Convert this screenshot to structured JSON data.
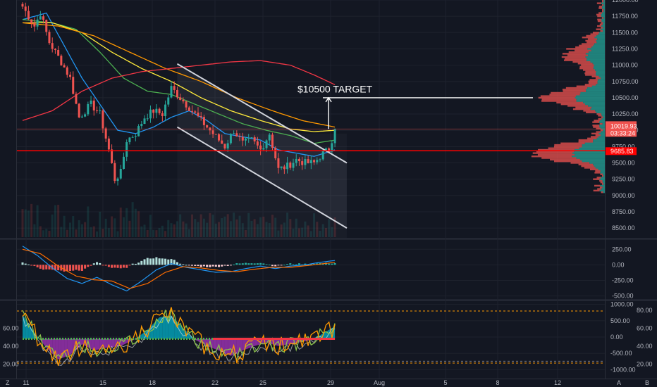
{
  "colors": {
    "background": "#131722",
    "grid": "#1e222d",
    "pane_separator": "#2a2e39",
    "candle_up": "#26a69a",
    "candle_down": "#ef5350",
    "ma_blue": "#2196f3",
    "ma_green": "#4caf50",
    "ma_yellow": "#ffeb3b",
    "ma_orange": "#ff9800",
    "ma_red": "#f23645",
    "support_line": "#ff0000",
    "channel": "#d1d4dc",
    "annotation": "#ffffff",
    "macd_line": "#2196f3",
    "signal_line": "#ff6d00",
    "osc_fill_up": "#00bcd4",
    "osc_fill_down": "#e040fb",
    "osc_line_a": "#ff9800",
    "osc_line_b": "#8bc34a",
    "osc_line_c": "#ffffff"
  },
  "chart_data": [
    {
      "type": "candlestick",
      "pane": "price",
      "ylim": [
        8350,
        12000
      ],
      "y_ticks": [
        "12000.00",
        "11750.00",
        "11500.00",
        "11250.00",
        "11000.00",
        "10750.00",
        "10500.00",
        "10250.00",
        "10000.00",
        "9750.00",
        "9500.00",
        "9250.00",
        "9000.00",
        "8750.00",
        "8500.00"
      ],
      "x_tick_labels": [
        "11",
        "15",
        "18",
        "22",
        "25",
        "29",
        "Aug",
        "5",
        "8",
        "12"
      ],
      "last_price_label": "10019.93",
      "countdown_label": "03:33:24",
      "support_price_label": "9685.83",
      "support_price": 9685.83,
      "current_price": 10019.93,
      "annotation_text": "$10500 TARGET",
      "target_price": 10500,
      "ohlc_anchor_path": [
        [
          0,
          11900
        ],
        [
          4,
          11600
        ],
        [
          6,
          11800
        ],
        [
          9,
          11350
        ],
        [
          13,
          11050
        ],
        [
          16,
          10800
        ],
        [
          19,
          10200
        ],
        [
          23,
          10400
        ],
        [
          26,
          10250
        ],
        [
          29,
          9700
        ],
        [
          31,
          9250
        ],
        [
          33,
          9350
        ],
        [
          35,
          9850
        ],
        [
          38,
          9950
        ],
        [
          41,
          10200
        ],
        [
          44,
          10300
        ],
        [
          47,
          10250
        ],
        [
          50,
          10650
        ],
        [
          53,
          10500
        ],
        [
          56,
          10350
        ],
        [
          59,
          10200
        ],
        [
          62,
          10050
        ],
        [
          65,
          9900
        ],
        [
          68,
          9750
        ],
        [
          71,
          10000
        ],
        [
          74,
          9800
        ],
        [
          77,
          9850
        ],
        [
          80,
          9700
        ],
        [
          83,
          9950
        ],
        [
          86,
          9400
        ],
        [
          89,
          9450
        ],
        [
          92,
          9550
        ],
        [
          95,
          9500
        ],
        [
          98,
          9500
        ],
        [
          101,
          9650
        ],
        [
          103,
          9700
        ],
        [
          105,
          10020
        ]
      ],
      "volume_profile_note": "Volume profile histogram on right side of price pane",
      "moving_averages": [
        {
          "color_key": "ma_blue",
          "path": [
            [
              0,
              11700
            ],
            [
              8,
              11800
            ],
            [
              14,
              11300
            ],
            [
              20,
              10800
            ],
            [
              26,
              10400
            ],
            [
              32,
              10000
            ],
            [
              38,
              9950
            ],
            [
              44,
              10050
            ],
            [
              50,
              10200
            ],
            [
              56,
              10300
            ],
            [
              62,
              10150
            ],
            [
              68,
              9950
            ],
            [
              74,
              9900
            ],
            [
              80,
              9850
            ],
            [
              86,
              9700
            ],
            [
              92,
              9650
            ],
            [
              98,
              9600
            ],
            [
              105,
              9700
            ]
          ]
        },
        {
          "color_key": "ma_green",
          "path": [
            [
              0,
              11700
            ],
            [
              10,
              11650
            ],
            [
              18,
              11550
            ],
            [
              26,
              11200
            ],
            [
              34,
              10800
            ],
            [
              42,
              10600
            ],
            [
              50,
              10550
            ],
            [
              58,
              10400
            ],
            [
              66,
              10250
            ],
            [
              74,
              10100
            ],
            [
              82,
              10000
            ],
            [
              90,
              9920
            ],
            [
              98,
              9800
            ],
            [
              105,
              9850
            ]
          ]
        },
        {
          "color_key": "ma_yellow",
          "path": [
            [
              0,
              11650
            ],
            [
              10,
              11650
            ],
            [
              20,
              11500
            ],
            [
              30,
              11200
            ],
            [
              40,
              10950
            ],
            [
              50,
              10750
            ],
            [
              60,
              10500
            ],
            [
              70,
              10300
            ],
            [
              80,
              10150
            ],
            [
              90,
              10020
            ],
            [
              98,
              9980
            ],
            [
              105,
              10000
            ]
          ]
        },
        {
          "color_key": "ma_orange",
          "path": [
            [
              0,
              11650
            ],
            [
              12,
              11600
            ],
            [
              24,
              11450
            ],
            [
              36,
              11200
            ],
            [
              48,
              10950
            ],
            [
              60,
              10750
            ],
            [
              72,
              10500
            ],
            [
              84,
              10300
            ],
            [
              94,
              10150
            ],
            [
              105,
              10050
            ]
          ]
        },
        {
          "color_key": "ma_red",
          "path": [
            [
              0,
              10150
            ],
            [
              10,
              10300
            ],
            [
              20,
              10600
            ],
            [
              30,
              10800
            ],
            [
              40,
              10900
            ],
            [
              50,
              10950
            ],
            [
              60,
              11000
            ],
            [
              70,
              11050
            ],
            [
              80,
              11070
            ],
            [
              90,
              11000
            ],
            [
              98,
              10850
            ],
            [
              105,
              10700
            ]
          ]
        }
      ],
      "channel": {
        "upper": [
          [
            52,
            11020
          ],
          [
            109,
            9500
          ]
        ],
        "lower": [
          [
            52,
            10050
          ],
          [
            109,
            8500
          ]
        ]
      }
    },
    {
      "type": "histogram",
      "pane": "macd",
      "ylim": [
        -550,
        400
      ],
      "y_ticks": [
        "250.00",
        "0.00",
        "-250.00",
        "-500.00"
      ]
    },
    {
      "type": "line",
      "pane": "oscillator",
      "left_ticks": [
        "60.00",
        "40.00",
        "20.00"
      ],
      "right_ticks": [
        "80.00",
        "60.00",
        "40.00",
        "20.00"
      ],
      "right_scale_ticks": [
        "1000.00",
        "500.00",
        "0.00",
        "-500.00",
        "-1000.00"
      ]
    }
  ]
}
